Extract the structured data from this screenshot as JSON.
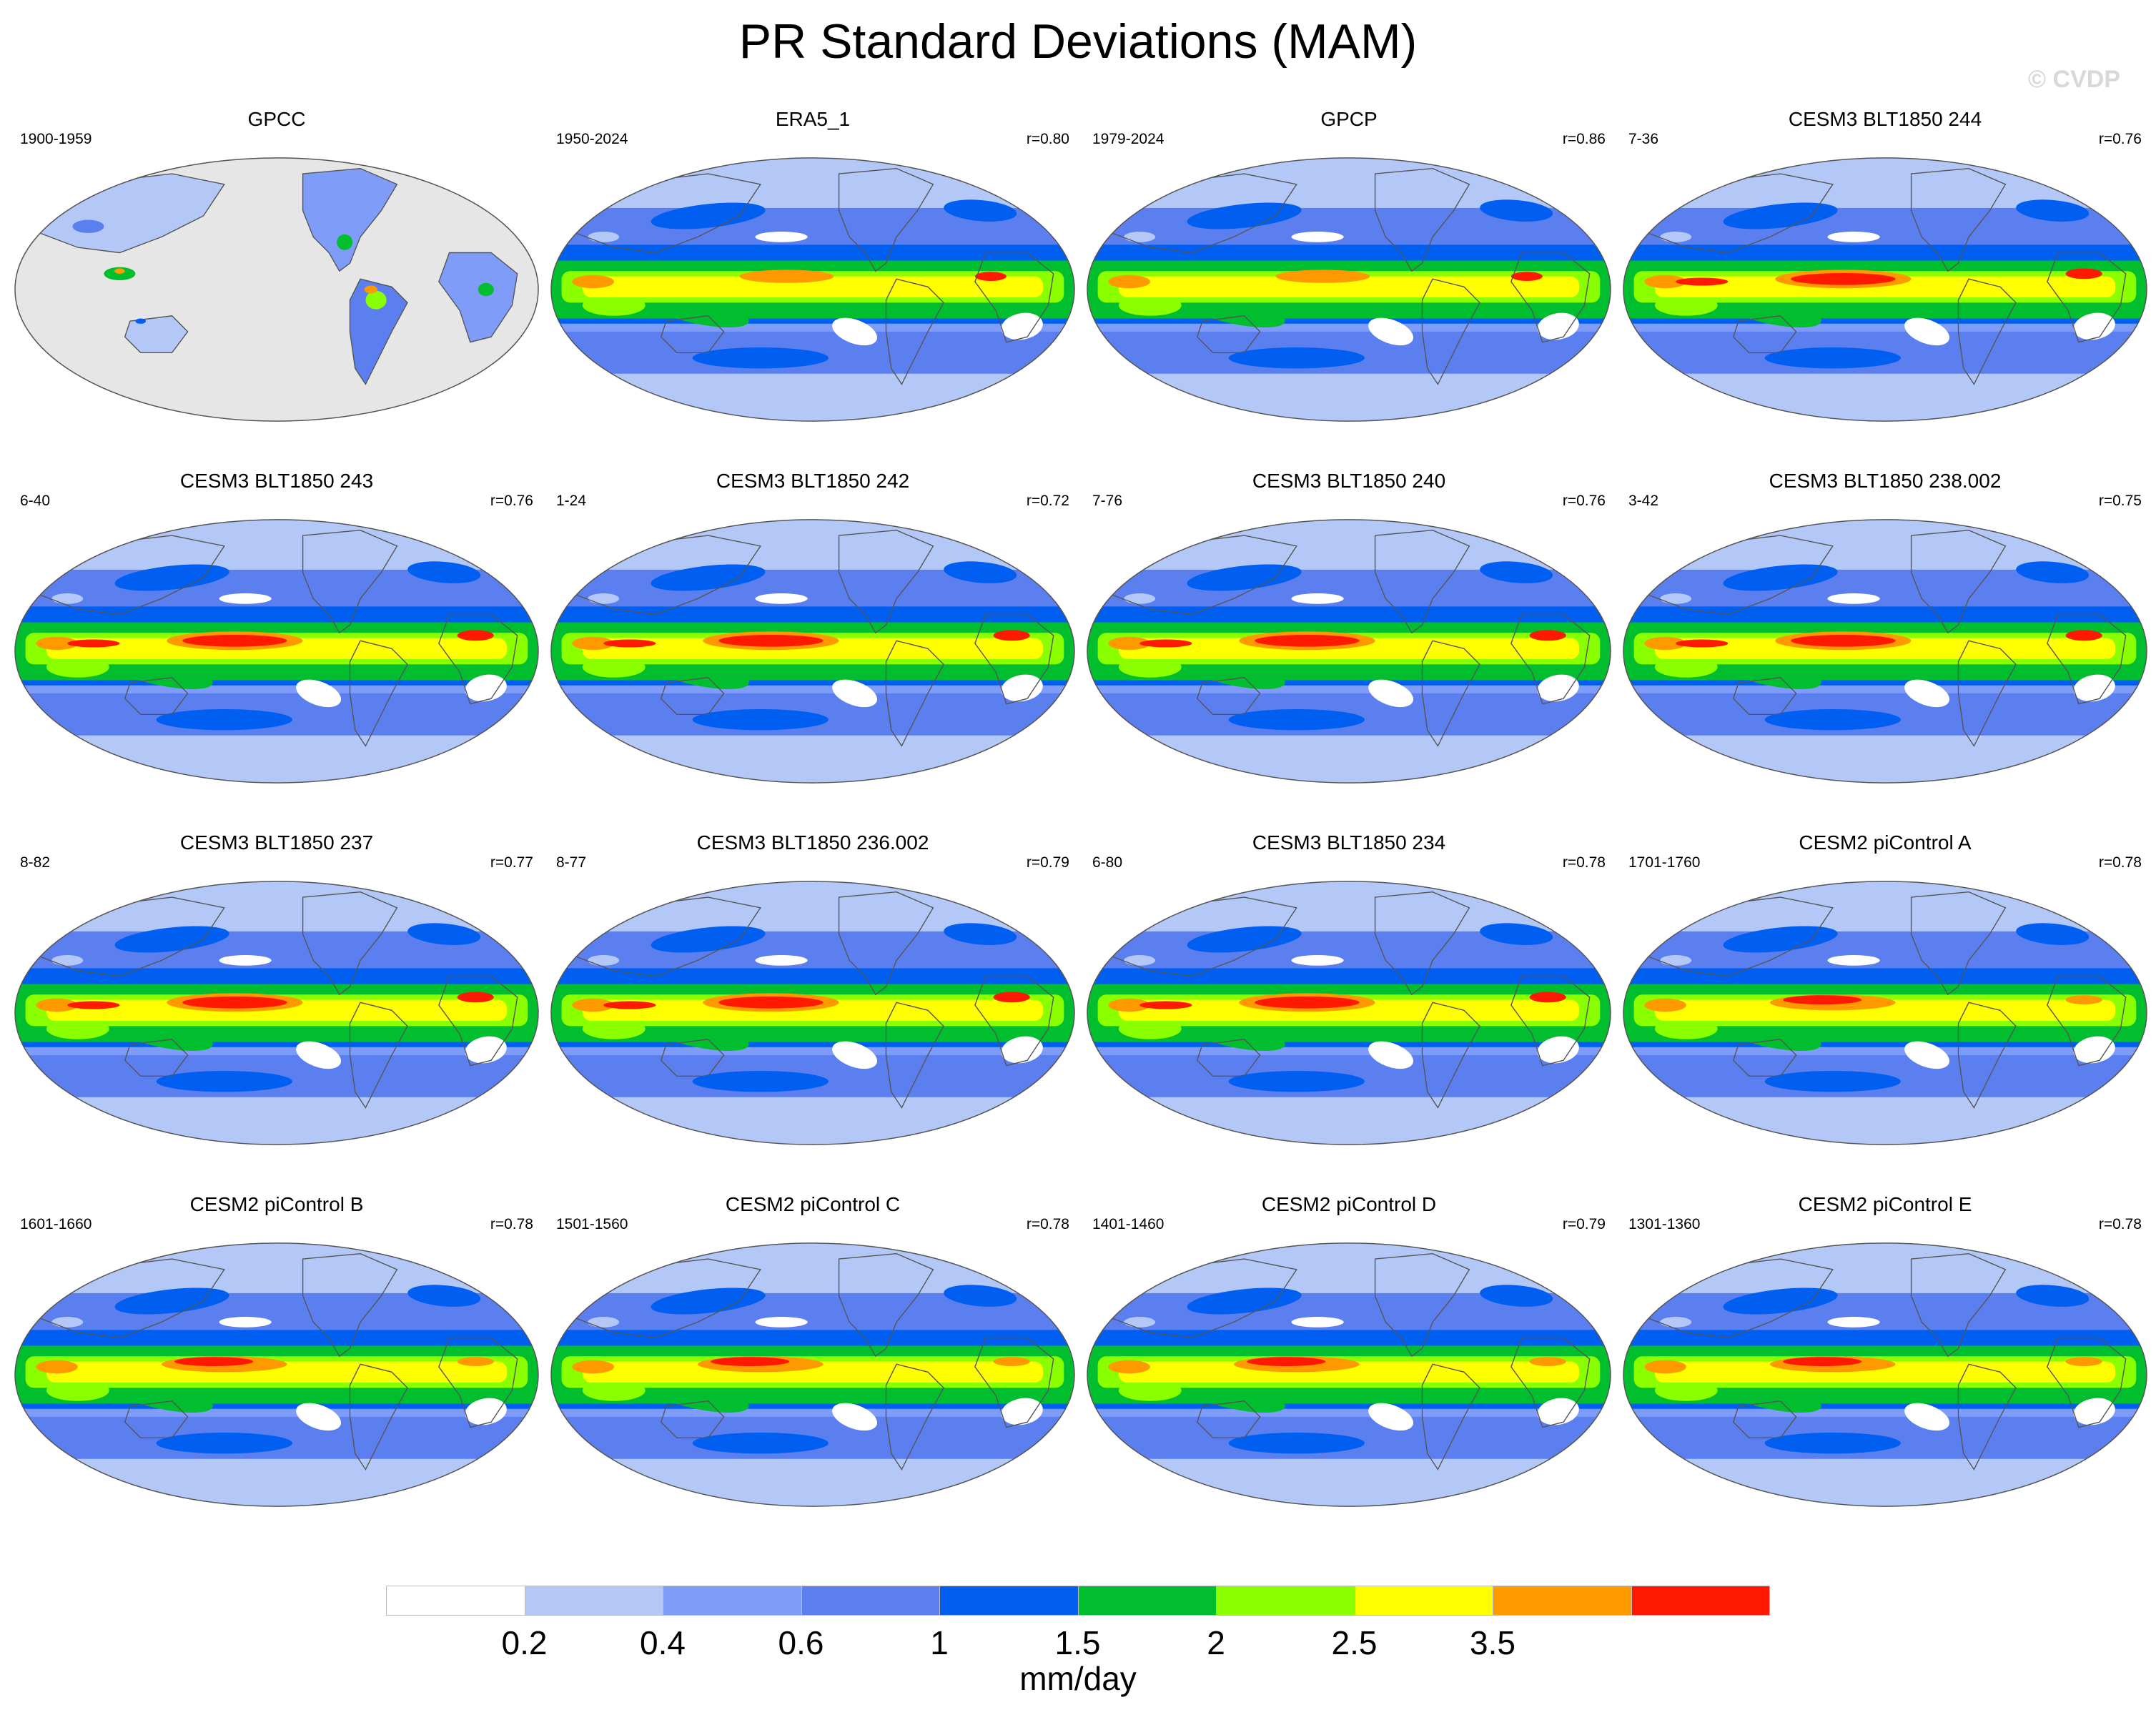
{
  "figure": {
    "title": "PR Standard Deviations (MAM)",
    "watermark": "© CVDP"
  },
  "panels": [
    {
      "title": "GPCC",
      "period": "1900-1959",
      "r": "",
      "style": "land"
    },
    {
      "title": "ERA5_1",
      "period": "1950-2024",
      "r": "r=0.80",
      "style": "obs"
    },
    {
      "title": "GPCP",
      "period": "1979-2024",
      "r": "r=0.86",
      "style": "obs"
    },
    {
      "title": "CESM3 BLT1850 244",
      "period": "7-36",
      "r": "r=0.76",
      "style": "model"
    },
    {
      "title": "CESM3 BLT1850 243",
      "period": "6-40",
      "r": "r=0.76",
      "style": "model"
    },
    {
      "title": "CESM3 BLT1850 242",
      "period": "1-24",
      "r": "r=0.72",
      "style": "model"
    },
    {
      "title": "CESM3 BLT1850 240",
      "period": "7-76",
      "r": "r=0.76",
      "style": "model"
    },
    {
      "title": "CESM3 BLT1850 238.002",
      "period": "3-42",
      "r": "r=0.75",
      "style": "model"
    },
    {
      "title": "CESM3 BLT1850 237",
      "period": "8-82",
      "r": "r=0.77",
      "style": "model"
    },
    {
      "title": "CESM3 BLT1850 236.002",
      "period": "8-77",
      "r": "r=0.79",
      "style": "model"
    },
    {
      "title": "CESM3 BLT1850 234",
      "period": "6-80",
      "r": "r=0.78",
      "style": "model"
    },
    {
      "title": "CESM2 piControl A",
      "period": "1701-1760",
      "r": "r=0.78",
      "style": "cesm2"
    },
    {
      "title": "CESM2 piControl B",
      "period": "1601-1660",
      "r": "r=0.78",
      "style": "cesm2"
    },
    {
      "title": "CESM2 piControl C",
      "period": "1501-1560",
      "r": "r=0.78",
      "style": "cesm2"
    },
    {
      "title": "CESM2 piControl D",
      "period": "1401-1460",
      "r": "r=0.79",
      "style": "cesm2"
    },
    {
      "title": "CESM2 piControl E",
      "period": "1301-1360",
      "r": "r=0.78",
      "style": "cesm2"
    }
  ],
  "colorbar": {
    "units": "mm/day",
    "tick_labels": [
      "0.2",
      "0.4",
      "0.6",
      "1",
      "1.5",
      "2",
      "2.5",
      "3.5"
    ],
    "colors": [
      "#ffffff",
      "#b4c8f8",
      "#7f9cf8",
      "#5c7ff0",
      "#005ff0",
      "#00be2d",
      "#8aff00",
      "#ffff00",
      "#ff9900",
      "#ff1900"
    ]
  },
  "colors": {
    "land_missing": "#e6e6e6",
    "coastline": "#555555",
    "map_border": "#555555"
  }
}
